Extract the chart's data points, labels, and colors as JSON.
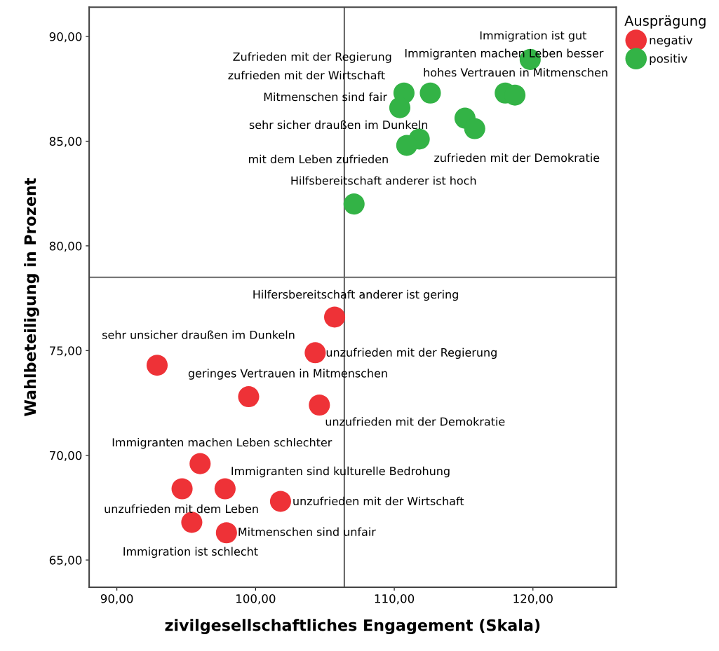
{
  "chart_data": {
    "type": "scatter",
    "xlabel": "zivilgesellschaftliches Engagement (Skala)",
    "ylabel": "Wahlbeteiligung in Prozent",
    "legend_title": "Ausprägung",
    "legend": "top right",
    "grid": false,
    "marker": "circle",
    "xlim": [
      88.0,
      126.0
    ],
    "ylim": [
      63.7,
      91.4
    ],
    "xticks": [
      {
        "value": 90,
        "label": "90,00"
      },
      {
        "value": 100,
        "label": "100,00"
      },
      {
        "value": 110,
        "label": "110,00"
      },
      {
        "value": 120,
        "label": "120,00"
      }
    ],
    "yticks": [
      {
        "value": 65,
        "label": "65,00"
      },
      {
        "value": 70,
        "label": "70,00"
      },
      {
        "value": 75,
        "label": "75,00"
      },
      {
        "value": 80,
        "label": "80,00"
      },
      {
        "value": 85,
        "label": "85,00"
      },
      {
        "value": 90,
        "label": "90,00"
      }
    ],
    "ref_lines": [
      {
        "axis": "x",
        "value": 106.4,
        "color": "#666666"
      },
      {
        "axis": "y",
        "value": 78.5,
        "color": "#666666"
      }
    ],
    "series": [
      {
        "name": "negativ",
        "color": "#ee3237",
        "x": [
          105.7,
          104.3,
          92.9,
          99.5,
          104.6,
          96.0,
          94.7,
          97.8,
          101.8,
          95.4,
          97.9
        ],
        "values": [
          76.6,
          74.9,
          74.3,
          72.8,
          72.4,
          69.6,
          68.4,
          68.4,
          67.8,
          66.8,
          66.3
        ]
      },
      {
        "name": "positiv",
        "color": "#33b346",
        "x": [
          119.8,
          118.0,
          118.7,
          110.7,
          112.6,
          110.4,
          115.1,
          115.8,
          111.8,
          110.9,
          107.1
        ],
        "values": [
          88.9,
          87.3,
          87.2,
          87.3,
          87.3,
          86.6,
          86.1,
          85.6,
          85.1,
          84.8,
          82.0
        ]
      }
    ],
    "annotations": [
      {
        "text": "Immigration ist gut",
        "x": 119.8,
        "y": 88.9
      },
      "Immigranten machen Leben besser",
      {
        "text": "hohes Vertrauen in Mitmenschen",
        "x": 118.7,
        "y": 87.2
      },
      "Zufrieden mit der Regierung",
      {
        "text": "zufrieden mit der Wirtschaft",
        "x": 110.7,
        "y": 87.3
      },
      {
        "text": "Mitmenschen sind fair",
        "x": 110.4,
        "y": 86.6
      },
      {
        "text": "sehr sicher draußen im Dunkeln",
        "x": 111.8,
        "y": 85.1
      },
      {
        "text": "mit dem Leben zufrieden",
        "x": 110.9,
        "y": 84.8
      },
      {
        "text": "zufrieden mit der Demokratie",
        "x": 115.8,
        "y": 85.6
      },
      {
        "text": "Hilfsbereitschaft anderer ist hoch",
        "x": 107.1,
        "y": 82.0
      },
      {
        "text": "Hilfersbereitschaft anderer ist gering",
        "x": 105.7,
        "y": 76.6
      },
      {
        "text": "sehr unsicher draußen im Dunkeln",
        "x": 92.9,
        "y": 74.3
      },
      {
        "text": "unzufrieden mit der Regierung",
        "x": 104.3,
        "y": 74.9
      },
      {
        "text": "geringes Vertrauen in Mitmenschen",
        "x": 99.5,
        "y": 72.8
      },
      {
        "text": "unzufrieden mit der Demokratie",
        "x": 104.6,
        "y": 72.4
      },
      {
        "text": "Immigranten machen Leben schlechter",
        "x": 96.0,
        "y": 69.6
      },
      {
        "text": "Immigranten sind kulturelle Bedrohung",
        "x": 97.8,
        "y": 68.4
      },
      {
        "text": "unzufrieden mit dem Leben",
        "x": 94.7,
        "y": 68.4
      },
      {
        "text": "unzufrieden mit der Wirtschaft",
        "x": 101.8,
        "y": 67.8
      },
      {
        "text": "Immigration ist schlecht",
        "x": 95.4,
        "y": 66.8
      },
      {
        "text": "Mitmenschen sind unfair",
        "x": 97.9,
        "y": 66.3
      }
    ]
  }
}
